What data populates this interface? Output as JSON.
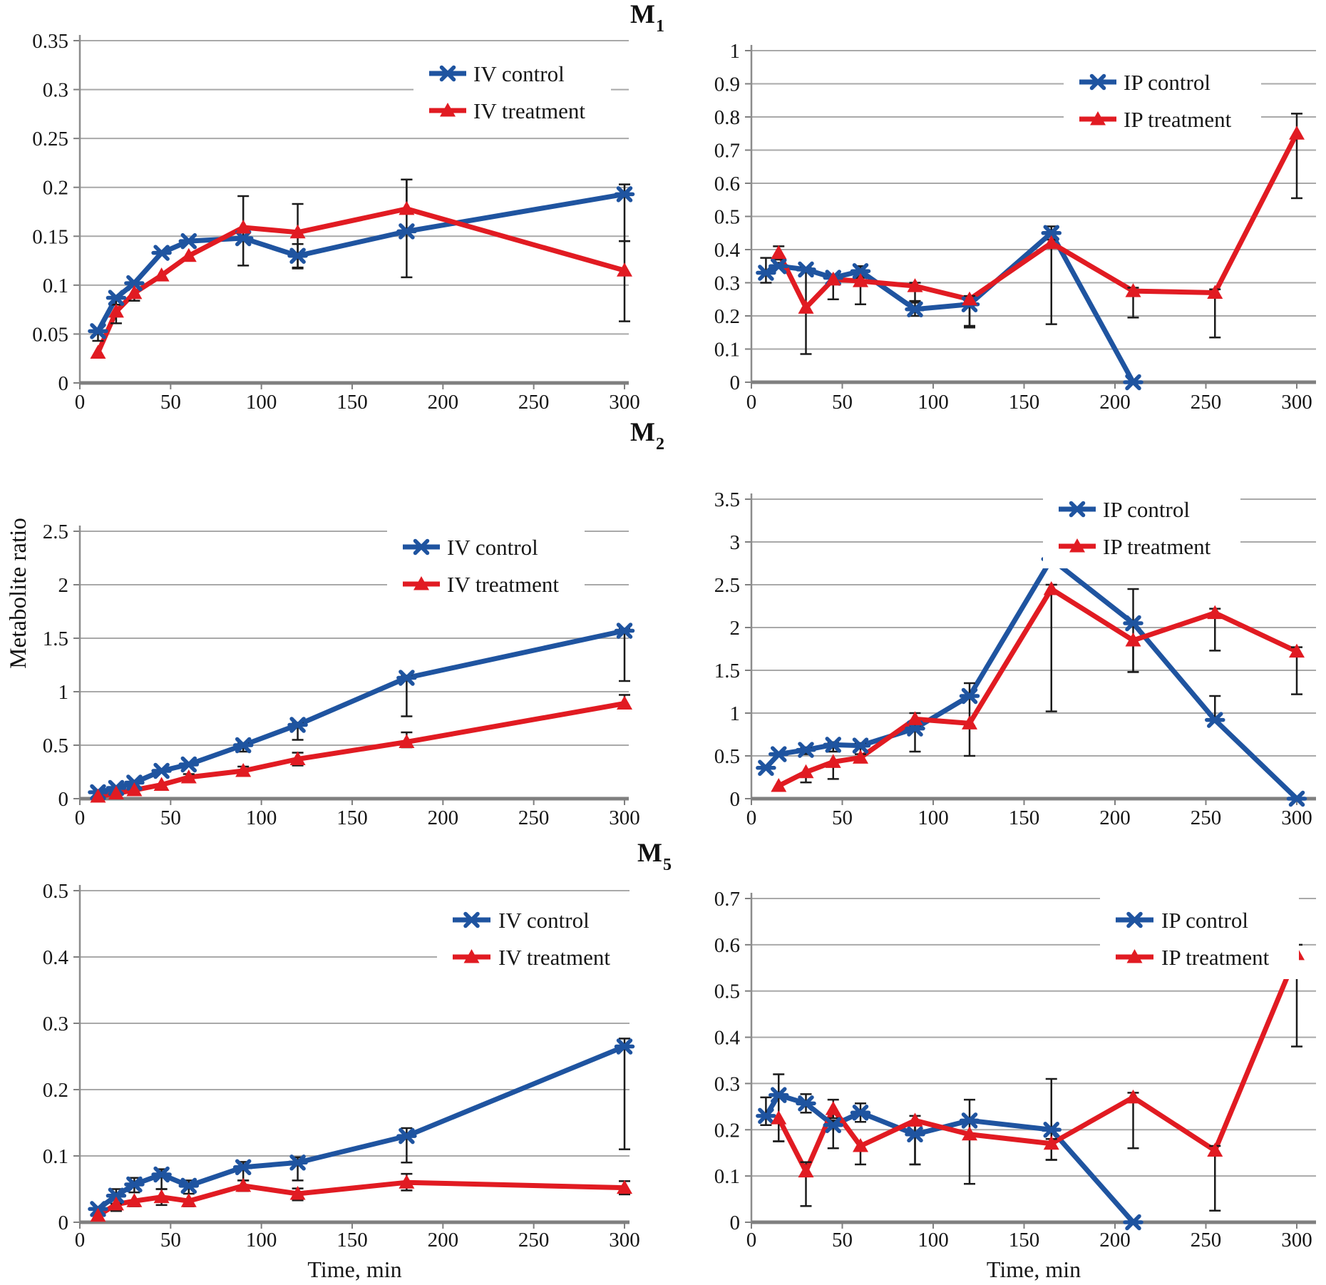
{
  "figure": {
    "ylabel": "Metabolite ratio",
    "section_titles": [
      {
        "main": "M",
        "sub": "1"
      },
      {
        "main": "M",
        "sub": "2"
      },
      {
        "main": "M",
        "sub": "5"
      }
    ],
    "colors": {
      "control": "#1f54a0",
      "treatment": "#e11b22",
      "grid": "#a9a9a9",
      "axis": "#7f7f7f",
      "error": "#1b1b1b",
      "text": "#161616",
      "background": "#ffffff"
    }
  },
  "chart_data": [
    {
      "id": "m1-iv",
      "type": "line",
      "section": "M1",
      "position": "top-left",
      "xlim": [
        0,
        300
      ],
      "x_ticks": [
        0,
        50,
        100,
        150,
        200,
        250,
        300
      ],
      "ylim": [
        0,
        0.35
      ],
      "ystep": 0.05,
      "x_axis_title": "",
      "grid": true,
      "legend_position": "inside-top-right",
      "legend": [
        "IV control",
        "IV treatment"
      ],
      "series": [
        {
          "name": "IV control",
          "role": "control",
          "marker": "x",
          "x": [
            10,
            20,
            30,
            45,
            60,
            90,
            120,
            180,
            300
          ],
          "y": [
            0.053,
            0.087,
            0.102,
            0.133,
            0.145,
            0.148,
            0.13,
            0.155,
            0.193
          ],
          "err": [
            [
              0.01,
              0
            ],
            [
              0.007,
              0
            ],
            [
              0,
              0
            ],
            [
              0,
              0
            ],
            [
              0,
              0
            ],
            [
              0.028,
              0.043
            ],
            [
              0.012,
              0.012
            ],
            [
              0.047,
              0.053
            ],
            [
              0.048,
              0.01
            ]
          ]
        },
        {
          "name": "IV treatment",
          "role": "treatment",
          "marker": "triangle",
          "x": [
            10,
            20,
            30,
            45,
            60,
            90,
            120,
            180,
            300
          ],
          "y": [
            0.031,
            0.073,
            0.092,
            0.11,
            0.13,
            0.159,
            0.154,
            0.178,
            0.115
          ],
          "err": [
            [
              0,
              0
            ],
            [
              0.012,
              0
            ],
            [
              0.008,
              0
            ],
            [
              0,
              0
            ],
            [
              0,
              0
            ],
            [
              0,
              0
            ],
            [
              0.037,
              0.029
            ],
            [
              0,
              0.03
            ],
            [
              0.052,
              0.03
            ]
          ]
        }
      ]
    },
    {
      "id": "m1-ip",
      "type": "line",
      "section": "M1",
      "position": "top-right",
      "xlim": [
        0,
        300
      ],
      "x_ticks": [
        0,
        50,
        100,
        150,
        200,
        250,
        300
      ],
      "ylim": [
        0,
        1.0
      ],
      "ystep": 0.1,
      "x_axis_title": "",
      "grid": true,
      "legend_position": "inside-top-right",
      "legend": [
        "IP control",
        "IP treatment"
      ],
      "series": [
        {
          "name": "IP control",
          "role": "control",
          "marker": "x",
          "x": [
            8,
            15,
            30,
            45,
            60,
            90,
            120,
            165,
            210
          ],
          "y": [
            0.33,
            0.35,
            0.34,
            0.315,
            0.335,
            0.22,
            0.235,
            0.45,
            0.0
          ],
          "err": [
            [
              0.03,
              0.045
            ],
            [
              0,
              0.01
            ],
            [
              0,
              0
            ],
            [
              0.02,
              0.01
            ],
            [
              0.015,
              0.015
            ],
            [
              0.02,
              0.025
            ],
            [
              0.065,
              0.015
            ],
            [
              0,
              0.02
            ],
            [
              0,
              0
            ]
          ]
        },
        {
          "name": "IP treatment",
          "role": "treatment",
          "marker": "triangle",
          "x": [
            15,
            30,
            45,
            60,
            90,
            120,
            165,
            210,
            255,
            300
          ],
          "y": [
            0.39,
            0.225,
            0.31,
            0.305,
            0.29,
            0.25,
            0.42,
            0.275,
            0.27,
            0.75
          ],
          "err": [
            [
              0.02,
              0.02
            ],
            [
              0.14,
              0.12
            ],
            [
              0.06,
              0.015
            ],
            [
              0.07,
              0.01
            ],
            [
              0.05,
              0.01
            ],
            [
              0.085,
              0.01
            ],
            [
              0.245,
              0.01
            ],
            [
              0.08,
              0.01
            ],
            [
              0.135,
              0.01
            ],
            [
              0.195,
              0.06
            ]
          ]
        }
      ]
    },
    {
      "id": "m2-iv",
      "type": "line",
      "section": "M2",
      "position": "middle-left",
      "xlim": [
        0,
        300
      ],
      "x_ticks": [
        0,
        50,
        100,
        150,
        200,
        250,
        300
      ],
      "ylim": [
        0,
        2.5
      ],
      "ystep": 0.5,
      "x_axis_title": "",
      "grid": true,
      "legend_position": "inside-top-right",
      "legend": [
        "IV control",
        "IV treatment"
      ],
      "series": [
        {
          "name": "IV control",
          "role": "control",
          "marker": "x",
          "x": [
            10,
            20,
            30,
            45,
            60,
            90,
            120,
            180,
            300
          ],
          "y": [
            0.06,
            0.1,
            0.15,
            0.26,
            0.32,
            0.5,
            0.69,
            1.13,
            1.57
          ],
          "err": [
            [
              0,
              0
            ],
            [
              0,
              0
            ],
            [
              0,
              0
            ],
            [
              0,
              0
            ],
            [
              0,
              0
            ],
            [
              0.06,
              0.02
            ],
            [
              0.14,
              0.02
            ],
            [
              0.36,
              0.02
            ],
            [
              0.47,
              0.02
            ]
          ]
        },
        {
          "name": "IV treatment",
          "role": "treatment",
          "marker": "triangle",
          "x": [
            10,
            20,
            30,
            45,
            60,
            90,
            120,
            180,
            300
          ],
          "y": [
            0.02,
            0.05,
            0.08,
            0.13,
            0.2,
            0.26,
            0.37,
            0.53,
            0.89
          ],
          "err": [
            [
              0,
              0
            ],
            [
              0,
              0
            ],
            [
              0,
              0
            ],
            [
              0,
              0
            ],
            [
              0.03,
              0.03
            ],
            [
              0.035,
              0.04
            ],
            [
              0.06,
              0.06
            ],
            [
              0.05,
              0.09
            ],
            [
              0.04,
              0.08
            ]
          ]
        }
      ]
    },
    {
      "id": "m2-ip",
      "type": "line",
      "section": "M2",
      "position": "middle-right",
      "xlim": [
        0,
        300
      ],
      "x_ticks": [
        0,
        50,
        100,
        150,
        200,
        250,
        300
      ],
      "ylim": [
        0,
        3.5
      ],
      "ystep": 0.5,
      "x_axis_title": "",
      "grid": true,
      "legend_position": "inside-top-right",
      "legend": [
        "IP control",
        "IP treatment"
      ],
      "series": [
        {
          "name": "IP control",
          "role": "control",
          "marker": "x",
          "x": [
            8,
            15,
            30,
            45,
            60,
            90,
            120,
            165,
            210,
            255,
            300
          ],
          "y": [
            0.36,
            0.52,
            0.57,
            0.63,
            0.62,
            0.82,
            1.2,
            2.8,
            2.05,
            0.92,
            0.0
          ],
          "err": [
            [
              0,
              0
            ],
            [
              0,
              0
            ],
            [
              0.05,
              0.03
            ],
            [
              0.08,
              0.03
            ],
            [
              0.1,
              0.03
            ],
            [
              0.27,
              0.03
            ],
            [
              0.35,
              0.15
            ],
            [
              0,
              0.05
            ],
            [
              0.57,
              0.4
            ],
            [
              0,
              0.28
            ],
            [
              0,
              0
            ]
          ]
        },
        {
          "name": "IP treatment",
          "role": "treatment",
          "marker": "triangle",
          "x": [
            15,
            30,
            45,
            60,
            90,
            120,
            165,
            210,
            255,
            300
          ],
          "y": [
            0.15,
            0.31,
            0.43,
            0.48,
            0.93,
            0.88,
            2.45,
            1.85,
            2.17,
            1.72
          ],
          "err": [
            [
              0.05,
              0
            ],
            [
              0.12,
              0
            ],
            [
              0.2,
              0
            ],
            [
              0.05,
              0
            ],
            [
              0.07,
              0.07
            ],
            [
              0.38,
              0
            ],
            [
              1.43,
              0.05
            ],
            [
              0.37,
              0
            ],
            [
              0.44,
              0.05
            ],
            [
              0.5,
              0.05
            ]
          ]
        }
      ]
    },
    {
      "id": "m5-iv",
      "type": "line",
      "section": "M5",
      "position": "bottom-left",
      "xlim": [
        0,
        300
      ],
      "x_ticks": [
        0,
        50,
        100,
        150,
        200,
        250,
        300
      ],
      "ylim": [
        0,
        0.5
      ],
      "ystep": 0.1,
      "x_axis_title": "Time, min",
      "grid": true,
      "legend_position": "inside-top-right",
      "legend": [
        "IV control",
        "IV treatment"
      ],
      "series": [
        {
          "name": "IV control",
          "role": "control",
          "marker": "x",
          "x": [
            10,
            20,
            30,
            45,
            60,
            90,
            120,
            180,
            300
          ],
          "y": [
            0.02,
            0.04,
            0.057,
            0.072,
            0.055,
            0.083,
            0.09,
            0.13,
            0.265
          ],
          "err": [
            [
              0.008,
              0
            ],
            [
              0.012,
              0.01
            ],
            [
              0.012,
              0.01
            ],
            [
              0.022,
              0.008
            ],
            [
              0.012,
              0.008
            ],
            [
              0.02,
              0.008
            ],
            [
              0.027,
              0.008
            ],
            [
              0.04,
              0.012
            ],
            [
              0.155,
              0.012
            ]
          ]
        },
        {
          "name": "IV treatment",
          "role": "treatment",
          "marker": "triangle",
          "x": [
            10,
            20,
            30,
            45,
            60,
            90,
            120,
            180,
            300
          ],
          "y": [
            0.01,
            0.027,
            0.032,
            0.038,
            0.032,
            0.055,
            0.043,
            0.06,
            0.052
          ],
          "err": [
            [
              0,
              0
            ],
            [
              0.01,
              0
            ],
            [
              0.008,
              0
            ],
            [
              0.012,
              0.012
            ],
            [
              0.008,
              0
            ],
            [
              0.008,
              0.008
            ],
            [
              0.01,
              0.008
            ],
            [
              0.012,
              0.013
            ],
            [
              0.01,
              0.01
            ]
          ]
        }
      ]
    },
    {
      "id": "m5-ip",
      "type": "line",
      "section": "M5",
      "position": "bottom-right",
      "xlim": [
        0,
        300
      ],
      "x_ticks": [
        0,
        50,
        100,
        150,
        200,
        250,
        300
      ],
      "ylim": [
        0,
        0.7
      ],
      "ystep": 0.1,
      "x_axis_title": "Time, min",
      "grid": true,
      "legend_position": "inside-top-right",
      "legend": [
        "IP control",
        "IP treatment"
      ],
      "series": [
        {
          "name": "IP control",
          "role": "control",
          "marker": "x",
          "x": [
            8,
            15,
            30,
            45,
            60,
            90,
            120,
            165,
            210
          ],
          "y": [
            0.23,
            0.275,
            0.257,
            0.21,
            0.237,
            0.19,
            0.22,
            0.2,
            0.0
          ],
          "err": [
            [
              0.02,
              0.04
            ],
            [
              0.1,
              0.045
            ],
            [
              0.02,
              0.02
            ],
            [
              0.05,
              0.01
            ],
            [
              0.02,
              0.02
            ],
            [
              0.065,
              0.02
            ],
            [
              0.137,
              0.045
            ],
            [
              0.065,
              0.11
            ],
            [
              0,
              0
            ]
          ]
        },
        {
          "name": "IP treatment",
          "role": "treatment",
          "marker": "triangle",
          "x": [
            15,
            30,
            45,
            60,
            90,
            120,
            165,
            210,
            255,
            300
          ],
          "y": [
            0.225,
            0.11,
            0.245,
            0.165,
            0.22,
            0.19,
            0.17,
            0.27,
            0.155,
            0.58
          ],
          "err": [
            [
              0.05,
              0
            ],
            [
              0.075,
              0.02
            ],
            [
              0.02,
              0.02
            ],
            [
              0.04,
              0
            ],
            [
              0.095,
              0.01
            ],
            [
              0,
              0
            ],
            [
              0.035,
              0.01
            ],
            [
              0.11,
              0.01
            ],
            [
              0.13,
              0.01
            ],
            [
              0.2,
              0.02
            ]
          ]
        }
      ]
    }
  ]
}
